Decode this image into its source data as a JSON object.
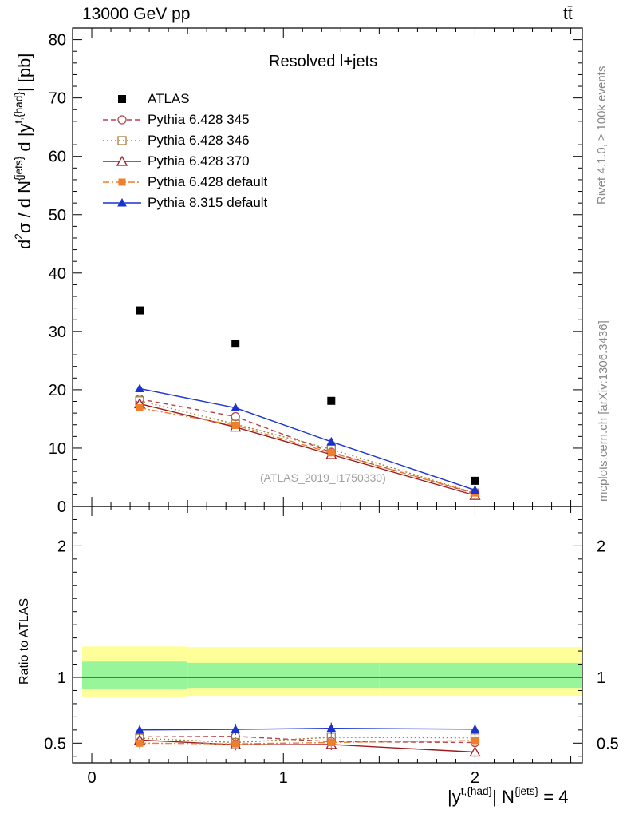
{
  "header": {
    "energy_label": "13000 GeV pp",
    "process_label": "tt̄"
  },
  "side_labels": {
    "rivet": "Rivet 4.1.0, ≥ 100k events",
    "mcplots": "mcplots.cern.ch [arXiv:1306.3436]"
  },
  "watermark": "(ATLAS_2019_I1750330)",
  "chart_data": [
    {
      "type": "scatter",
      "panel": "main",
      "title": "Resolved l+jets",
      "ylabel": "d²σ / d N^{jets} d |y^{t,{had}}| [pb]",
      "ylim": [
        0,
        82
      ],
      "yticks": [
        0,
        10,
        20,
        30,
        40,
        50,
        60,
        70,
        80
      ],
      "xlim": [
        -0.1,
        2.56
      ],
      "x": [
        0.25,
        0.75,
        1.25,
        2.0
      ],
      "series": [
        {
          "name": "ATLAS",
          "style": "data",
          "color": "#000000",
          "values": [
            33.6,
            27.9,
            18.1,
            4.4
          ]
        },
        {
          "name": "Pythia 6.428 345",
          "style": "dashed",
          "marker": "circle",
          "color": "#b5414b",
          "values": [
            18.4,
            15.4,
            9.3,
            2.2
          ]
        },
        {
          "name": "Pythia 6.428 346",
          "style": "dotted",
          "marker": "square",
          "color": "#a5803b",
          "values": [
            18.1,
            14.1,
            9.8,
            2.3
          ]
        },
        {
          "name": "Pythia 6.428 370",
          "style": "solid",
          "marker": "triangle-open",
          "color": "#9c1b21",
          "values": [
            17.6,
            13.6,
            8.9,
            1.9
          ]
        },
        {
          "name": "Pythia 6.428 default",
          "style": "dashdot",
          "marker": "square-filled",
          "color": "#ee7f2d",
          "values": [
            16.9,
            13.9,
            9.2,
            2.3
          ]
        },
        {
          "name": "Pythia 8.315 default",
          "style": "solid",
          "marker": "triangle-filled",
          "color": "#1a33cc",
          "values": [
            20.2,
            16.9,
            11.1,
            2.8
          ]
        }
      ]
    },
    {
      "type": "line",
      "panel": "ratio",
      "ylabel": "Ratio to ATLAS",
      "xlabel": "|y^{t,{had}}| N^{jets} = 4",
      "ylim": [
        0.35,
        2.3
      ],
      "yticks": [
        0.5,
        1,
        2
      ],
      "ytick_labels": [
        "0.5",
        "1",
        "2"
      ],
      "xticks": [
        0,
        1,
        2
      ],
      "xtick_labels": [
        "0",
        "1",
        "2"
      ],
      "bands": {
        "bins": [
          [
            -0.1,
            0.5
          ],
          [
            0.5,
            1.5
          ],
          [
            1.5,
            2.56
          ]
        ],
        "outer": [
          [
            0.855,
            1.235
          ],
          [
            0.86,
            1.23
          ],
          [
            0.86,
            1.23
          ]
        ],
        "inner": [
          [
            0.91,
            1.12
          ],
          [
            0.92,
            1.11
          ],
          [
            0.92,
            1.11
          ]
        ],
        "outer_color": "#ffff99",
        "inner_color": "#99f599"
      },
      "x": [
        0.25,
        0.75,
        1.25,
        2.0
      ],
      "series": [
        {
          "name": "Pythia 6.428 345",
          "values": [
            0.548,
            0.552,
            0.512,
            0.505
          ]
        },
        {
          "name": "Pythia 6.428 346",
          "values": [
            0.538,
            0.505,
            0.545,
            0.54
          ]
        },
        {
          "name": "Pythia 6.428 370",
          "values": [
            0.524,
            0.488,
            0.49,
            0.432
          ]
        },
        {
          "name": "Pythia 6.428 default",
          "values": [
            0.5,
            0.495,
            0.505,
            0.52
          ]
        },
        {
          "name": "Pythia 8.315 default",
          "values": [
            0.6,
            0.605,
            0.613,
            0.606
          ]
        }
      ]
    }
  ]
}
